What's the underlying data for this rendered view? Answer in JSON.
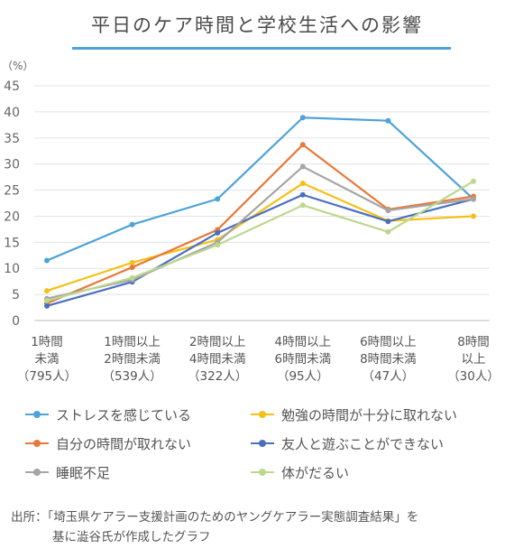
{
  "title": "平日のケア時間と学校生活への影響",
  "chart_data": {
    "type": "line",
    "unit_label": "（%）",
    "ylim": [
      0,
      45
    ],
    "yticks": [
      "0",
      "5",
      "10",
      "15",
      "20",
      "25",
      "30",
      "35",
      "40",
      "45"
    ],
    "grid": true,
    "categories": [
      [
        "1時間",
        "未満",
        "（795人）"
      ],
      [
        "1時間以上",
        "2時間未満",
        "（539人）"
      ],
      [
        "2時間以上",
        "4時間未満",
        "（322人）"
      ],
      [
        "4時間以上",
        "6時間未満",
        "（95人）"
      ],
      [
        "6時間以上",
        "8時間未満",
        "（47人）"
      ],
      [
        "8時間",
        "以上",
        "（30人）"
      ]
    ],
    "series": [
      {
        "name": "ストレスを感じている",
        "color": "#4ea3d8",
        "values": [
          11.5,
          18.4,
          23.3,
          38.9,
          38.3,
          23.3
        ]
      },
      {
        "name": "勉強の時間が十分に取れない",
        "color": "#f5c016",
        "values": [
          5.7,
          11.1,
          15.5,
          26.3,
          19.1,
          20.0
        ]
      },
      {
        "name": "自分の時間が取れない",
        "color": "#e8793a",
        "values": [
          3.3,
          10.2,
          17.4,
          33.7,
          21.3,
          23.8
        ]
      },
      {
        "name": "友人と遊ぶことができない",
        "color": "#4a6fbe",
        "values": [
          2.8,
          7.4,
          16.8,
          24.1,
          19.0,
          23.3
        ]
      },
      {
        "name": "睡眠不足",
        "color": "#a5a5a5",
        "values": [
          4.2,
          7.8,
          15.0,
          29.5,
          21.1,
          23.3
        ]
      },
      {
        "name": "体がだるい",
        "color": "#bcd88d",
        "values": [
          3.8,
          8.2,
          14.5,
          22.1,
          17.0,
          26.7
        ]
      }
    ],
    "legend_position": "bottom"
  },
  "legend": [
    {
      "label": "ストレスを感じている",
      "color": "#4ea3d8"
    },
    {
      "label": "勉強の時間が十分に取れない",
      "color": "#f5c016"
    },
    {
      "label": "自分の時間が取れない",
      "color": "#e8793a"
    },
    {
      "label": "友人と遊ぶことができない",
      "color": "#4a6fbe"
    },
    {
      "label": "睡眠不足",
      "color": "#a5a5a5"
    },
    {
      "label": "体がだるい",
      "color": "#bcd88d"
    }
  ],
  "source": {
    "line1": "出所：「埼玉県ケアラー支援計画のためのヤングケアラー実態調査結果」を",
    "line2": "基に澁谷氏が作成したグラフ"
  }
}
